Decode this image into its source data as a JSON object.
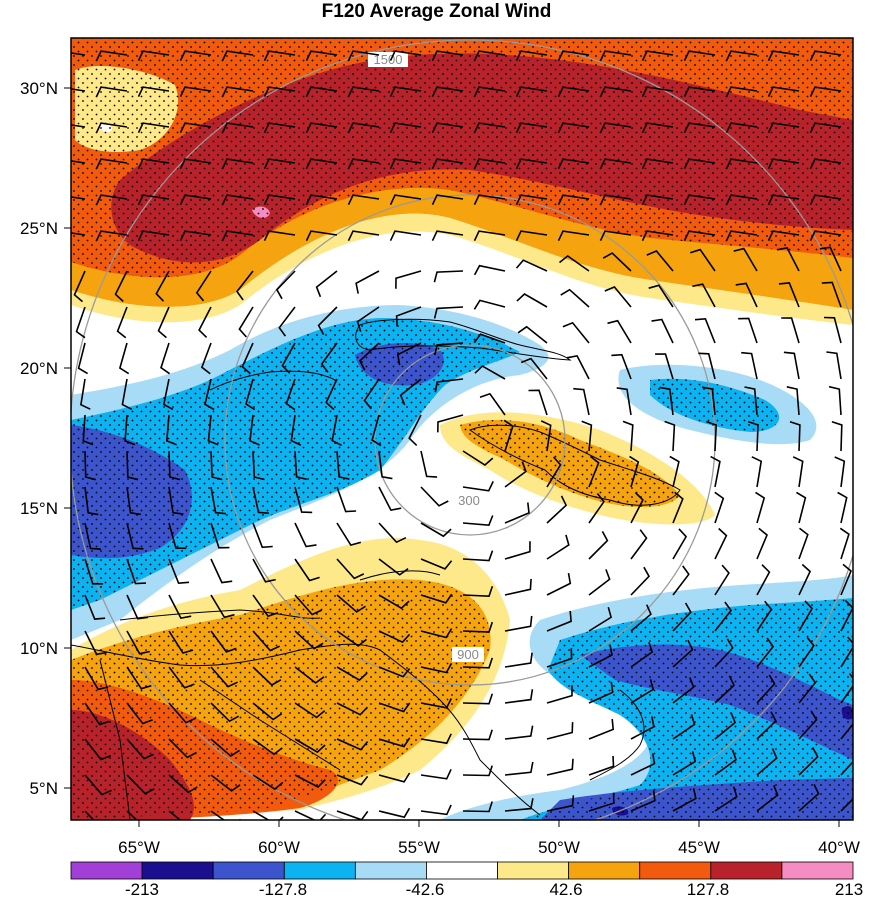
{
  "title": "F120 Average Zonal Wind",
  "lat_labels": [
    "30°N",
    "25°N",
    "20°N",
    "15°N",
    "10°N",
    "5°N"
  ],
  "lon_labels": [
    "65°W",
    "60°W",
    "55°W",
    "50°W",
    "45°W",
    "40°W"
  ],
  "colorbar": {
    "colors": [
      "#a23fd6",
      "#1a0f8f",
      "#3d55cc",
      "#0db2f0",
      "#a8dcf6",
      "#ffffff",
      "#fde98a",
      "#f5a30f",
      "#f25a0e",
      "#b8232b",
      "#f58cc2"
    ],
    "labels": [
      "-213",
      "-127.8",
      "-42.6",
      "42.6",
      "127.8",
      "213"
    ]
  },
  "contour_labels": {
    "r300": "300",
    "r900": "900",
    "r1500": "1500"
  }
}
